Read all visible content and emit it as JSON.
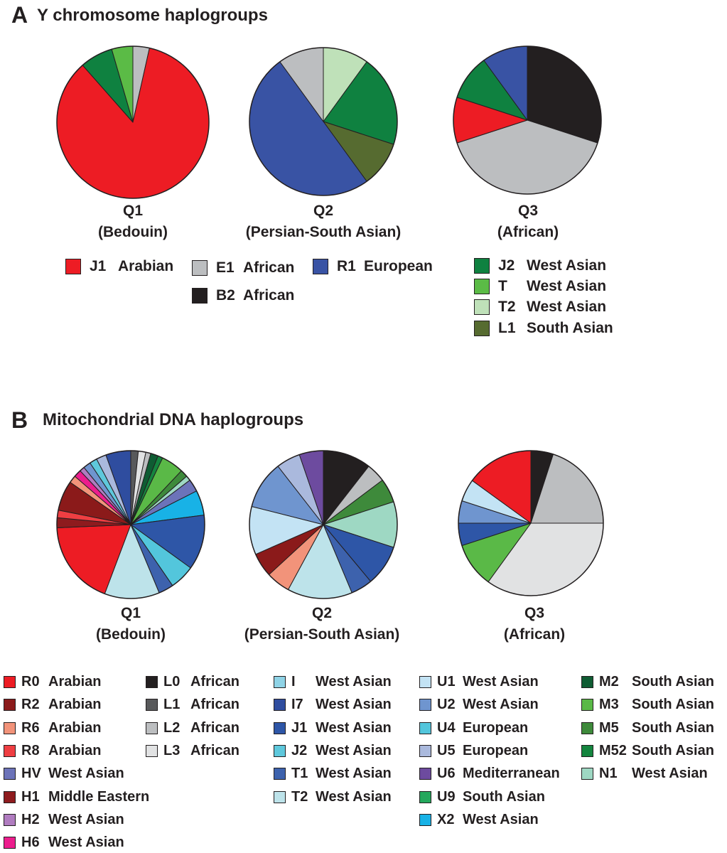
{
  "panel_a": {
    "letter": "A",
    "title": "Y chromosome haplogroups"
  },
  "panel_b": {
    "letter": "B",
    "title": "Mitochondrial DNA haplogroups"
  },
  "chart_data": [
    {
      "type": "pie",
      "panel": "A",
      "title": "Y chromosome haplogroups",
      "legend": [
        {
          "code": "J1",
          "label": "Arabian",
          "color": "#ed1c24"
        },
        {
          "code": "E1",
          "label": "African",
          "color": "#bcbec0"
        },
        {
          "code": "R1",
          "label": "European",
          "color": "#3953a4"
        },
        {
          "code": "B2",
          "label": "African",
          "color": "#231f20"
        },
        {
          "code": "J2",
          "label": "West Asian",
          "color": "#0f8140"
        },
        {
          "code": "T",
          "label": "West Asian",
          "color": "#5bbb46"
        },
        {
          "code": "T2",
          "label": "West Asian",
          "color": "#bfe1b9"
        },
        {
          "code": "L1",
          "label": "South Asian",
          "color": "#566b30"
        }
      ],
      "pies": [
        {
          "label": "Q1",
          "sublabel": "(Bedouin)",
          "slices": [
            {
              "name": "E1",
              "value": 3.5
            },
            {
              "name": "J1",
              "value": 85
            },
            {
              "name": "J2",
              "value": 7
            },
            {
              "name": "T",
              "value": 4.5
            }
          ]
        },
        {
          "label": "Q2",
          "sublabel": "(Persian-South Asian)",
          "slices": [
            {
              "name": "T2",
              "value": 10
            },
            {
              "name": "J2",
              "value": 20
            },
            {
              "name": "L1",
              "value": 10
            },
            {
              "name": "R1",
              "value": 50
            },
            {
              "name": "E1",
              "value": 10
            }
          ]
        },
        {
          "label": "Q3",
          "sublabel": "(African)",
          "slices": [
            {
              "name": "B2",
              "value": 30
            },
            {
              "name": "E1",
              "value": 40
            },
            {
              "name": "J1",
              "value": 10
            },
            {
              "name": "J2",
              "value": 10
            },
            {
              "name": "R1",
              "value": 10
            }
          ]
        }
      ]
    },
    {
      "type": "pie",
      "panel": "B",
      "title": "Mitochondrial DNA haplogroups",
      "legend": [
        {
          "code": "R0",
          "label": "Arabian",
          "color": "#ed1c24"
        },
        {
          "code": "R2",
          "label": "Arabian",
          "color": "#8b1a1a"
        },
        {
          "code": "R6",
          "label": "Arabian",
          "color": "#f2937a"
        },
        {
          "code": "R8",
          "label": "Arabian",
          "color": "#ef3e42"
        },
        {
          "code": "HV",
          "label": "West Asian",
          "color": "#6c73b9"
        },
        {
          "code": "H1",
          "label": "Middle Eastern",
          "color": "#8e1b1e"
        },
        {
          "code": "H2",
          "label": "West Asian",
          "color": "#b07cc0"
        },
        {
          "code": "H6",
          "label": "West Asian",
          "color": "#ec1d8d"
        },
        {
          "code": "L0",
          "label": "African",
          "color": "#231f20"
        },
        {
          "code": "L1",
          "label": "African",
          "color": "#58595b"
        },
        {
          "code": "L2",
          "label": "African",
          "color": "#bcbec0"
        },
        {
          "code": "L3",
          "label": "African",
          "color": "#e1e2e3"
        },
        {
          "code": "I",
          "label": "West Asian",
          "color": "#8fd3e6"
        },
        {
          "code": "I7",
          "label": "West Asian",
          "color": "#2f4d9f"
        },
        {
          "code": "J1",
          "label": "West Asian",
          "color": "#2e56a7"
        },
        {
          "code": "J2",
          "label": "West Asian",
          "color": "#5ec8dc"
        },
        {
          "code": "T1",
          "label": "West Asian",
          "color": "#3d62ad"
        },
        {
          "code": "T2",
          "label": "West Asian",
          "color": "#bde3ea"
        },
        {
          "code": "U1",
          "label": "West Asian",
          "color": "#c3e3f4"
        },
        {
          "code": "U2",
          "label": "West Asian",
          "color": "#6f95cf"
        },
        {
          "code": "U4",
          "label": "European",
          "color": "#53c6dc"
        },
        {
          "code": "U5",
          "label": "European",
          "color": "#aab9dd"
        },
        {
          "code": "U6",
          "label": "Mediterranean",
          "color": "#6d4b9f"
        },
        {
          "code": "U9",
          "label": "South Asian",
          "color": "#23a85c"
        },
        {
          "code": "X2",
          "label": "West Asian",
          "color": "#18b2e6"
        },
        {
          "code": "M2",
          "label": "South Asian",
          "color": "#0f5c33"
        },
        {
          "code": "M3",
          "label": "South Asian",
          "color": "#5ab947"
        },
        {
          "code": "M5",
          "label": "South Asian",
          "color": "#3e8a3b"
        },
        {
          "code": "M52",
          "label": "South Asian",
          "color": "#14853f"
        },
        {
          "code": "N1",
          "label": "West Asian",
          "color": "#9ed8c3"
        }
      ],
      "pies": [
        {
          "label": "Q1",
          "sublabel": "(Bedouin)",
          "slices": [
            {
              "name": "L1",
              "value": 1.5
            },
            {
              "name": "L3",
              "value": 1.5
            },
            {
              "name": "L2",
              "value": 1
            },
            {
              "name": "M2",
              "value": 1.5
            },
            {
              "name": "M52",
              "value": 1
            },
            {
              "name": "M3",
              "value": 4.5
            },
            {
              "name": "M5",
              "value": 1.5
            },
            {
              "name": "N1",
              "value": 1
            },
            {
              "name": "HV",
              "value": 2.5
            },
            {
              "name": "X2",
              "value": 5
            },
            {
              "name": "J1",
              "value": 11
            },
            {
              "name": "U4",
              "value": 5
            },
            {
              "name": "T1",
              "value": 3
            },
            {
              "name": "T2",
              "value": 11
            },
            {
              "name": "R0",
              "value": 17
            },
            {
              "name": "H1",
              "value": 2
            },
            {
              "name": "R8",
              "value": 1.5
            },
            {
              "name": "R2",
              "value": 6
            },
            {
              "name": "R6",
              "value": 1.5
            },
            {
              "name": "H6",
              "value": 1.5
            },
            {
              "name": "H2",
              "value": 1
            },
            {
              "name": "U2",
              "value": 1.5
            },
            {
              "name": "J2",
              "value": 1.5
            },
            {
              "name": "U5",
              "value": 2
            },
            {
              "name": "I7",
              "value": 5
            }
          ]
        },
        {
          "label": "Q2",
          "sublabel": "(Persian-South Asian)",
          "slices": [
            {
              "name": "L0",
              "value": 10
            },
            {
              "name": "L2",
              "value": 4
            },
            {
              "name": "M5",
              "value": 5
            },
            {
              "name": "N1",
              "value": 9.5
            },
            {
              "name": "J1",
              "value": 8.5
            },
            {
              "name": "T1",
              "value": 4.5
            },
            {
              "name": "T2",
              "value": 13.5
            },
            {
              "name": "R6",
              "value": 5
            },
            {
              "name": "R2",
              "value": 5
            },
            {
              "name": "U1",
              "value": 10
            },
            {
              "name": "U2",
              "value": 10
            },
            {
              "name": "U5",
              "value": 5
            },
            {
              "name": "U6",
              "value": 5
            }
          ]
        },
        {
          "label": "Q3",
          "sublabel": "(African)",
          "slices": [
            {
              "name": "L0",
              "value": 5
            },
            {
              "name": "L2",
              "value": 20
            },
            {
              "name": "L3",
              "value": 35
            },
            {
              "name": "M3",
              "value": 10
            },
            {
              "name": "J1",
              "value": 5
            },
            {
              "name": "U2",
              "value": 5
            },
            {
              "name": "U1",
              "value": 5
            },
            {
              "name": "R0",
              "value": 15
            }
          ]
        }
      ]
    }
  ]
}
